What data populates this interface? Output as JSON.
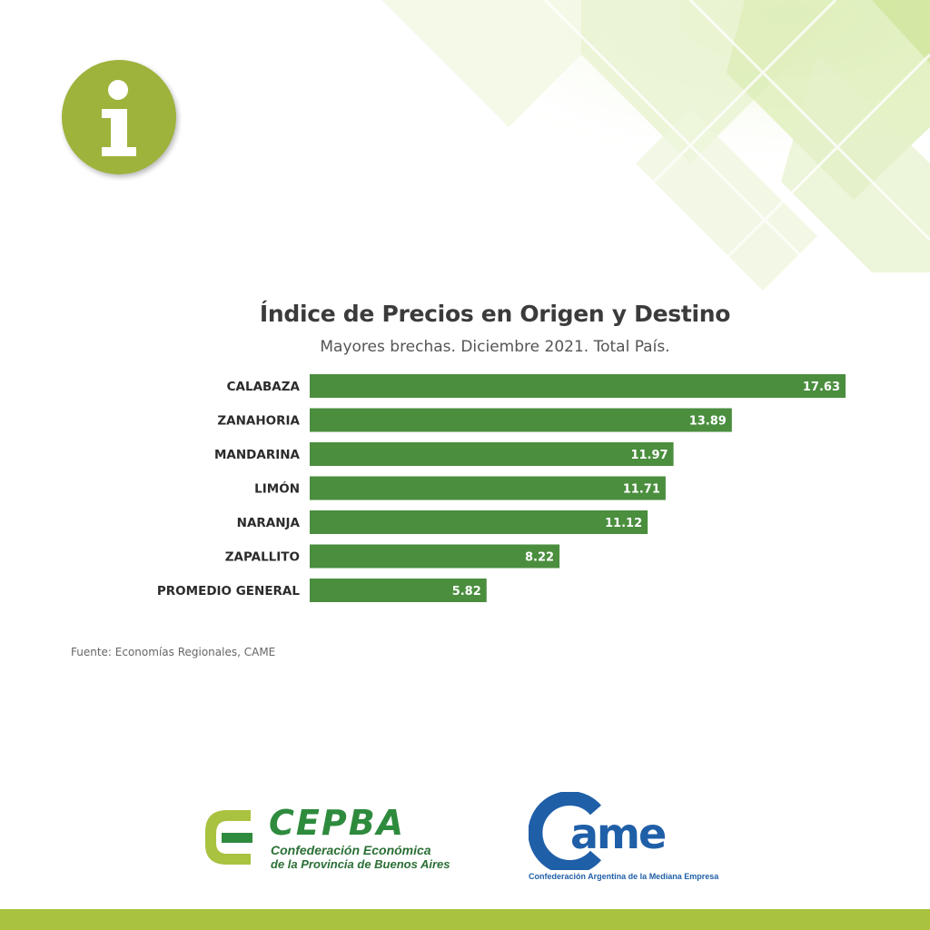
{
  "chart_data": {
    "type": "bar",
    "orientation": "horizontal",
    "title": "Índice de Precios en Origen y Destino",
    "subtitle": "Mayores brechas. Diciembre 2021. Total País.",
    "categories": [
      "CALABAZA",
      "ZANAHORIA",
      "MANDARINA",
      "LIMÓN",
      "NARANJA",
      "ZAPALLITO",
      "PROMEDIO GENERAL"
    ],
    "values": [
      17.63,
      13.89,
      11.97,
      11.71,
      11.12,
      8.22,
      5.82
    ],
    "value_labels": [
      "17.63",
      "13.89",
      "11.97",
      "11.71",
      "11.12",
      "8.22",
      "5.82"
    ],
    "xlim": [
      0,
      17.63
    ],
    "grid": false,
    "bar_color": "#4a8e3e",
    "source": "Fuente: Economías Regionales, CAME"
  },
  "badge": {
    "icon": "info-icon",
    "color": "#9db33b"
  },
  "logos": {
    "cepba": {
      "name": "CEPBA",
      "line1": "Confederación Económica",
      "line2": "de la Provincia de Buenos Aires",
      "color": "#2e8b3d"
    },
    "came": {
      "name": "came",
      "tagline": "Confederación Argentina de la Mediana Empresa",
      "color": "#1f5fa8"
    }
  },
  "theme": {
    "accent": "#a9c23f"
  }
}
